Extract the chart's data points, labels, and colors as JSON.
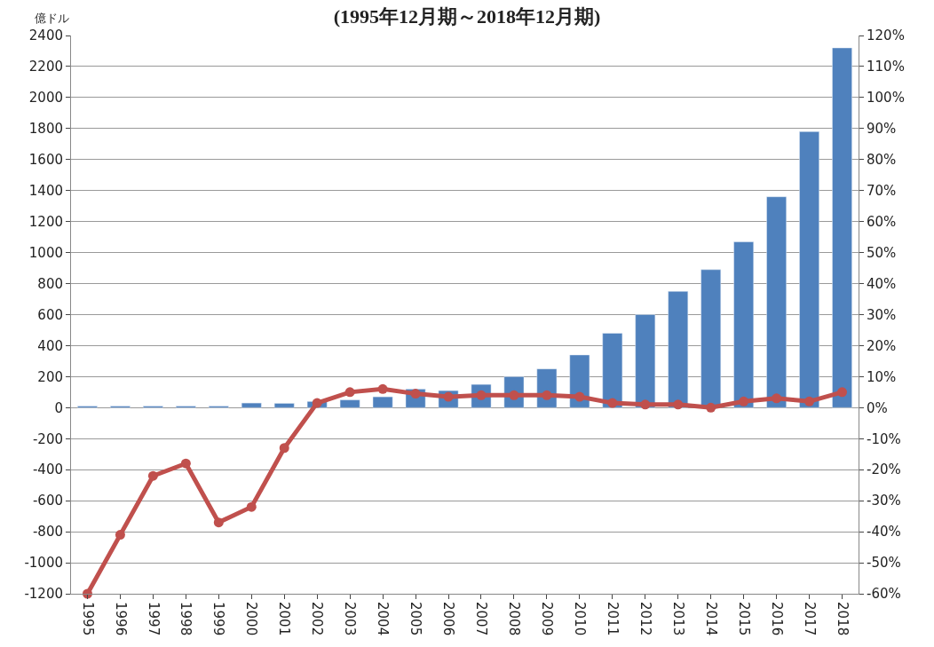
{
  "chart_data": {
    "type": "bar",
    "title": "(1995年12月期～2018年12月期)",
    "ylabel": "億ドル",
    "categories": [
      "1995",
      "1996",
      "1997",
      "1998",
      "1999",
      "2000",
      "2001",
      "2002",
      "2003",
      "2004",
      "2005",
      "2006",
      "2007",
      "2008",
      "2009",
      "2010",
      "2011",
      "2012",
      "2013",
      "2014",
      "2015",
      "2016",
      "2017",
      "2018"
    ],
    "series": [
      {
        "color": "#4f81bd",
        "values": [
          10,
          10,
          10,
          10,
          10,
          30,
          28,
          40,
          50,
          70,
          120,
          110,
          150,
          200,
          250,
          340,
          480,
          600,
          750,
          890,
          1070,
          1360,
          1780,
          2320
        ]
      },
      {
        "type": "line",
        "axis": "y2",
        "color": "#c0504d",
        "marker": "circle",
        "values": [
          -60,
          -41,
          -22,
          -18,
          -37,
          -32,
          -13,
          1.5,
          5,
          6,
          4.5,
          3.5,
          4,
          4,
          4,
          3.5,
          1.5,
          1,
          1,
          0,
          2,
          3,
          2,
          5
        ]
      }
    ],
    "ylim": [
      -1200,
      2400
    ],
    "yticks": [
      -1200,
      -1000,
      -800,
      -600,
      -400,
      -200,
      0,
      200,
      400,
      600,
      800,
      1000,
      1200,
      1400,
      1600,
      1800,
      2000,
      2200,
      2400
    ],
    "y2lim": [
      -60,
      120
    ],
    "y2ticks": [
      {
        "value": -60,
        "label": "-60%"
      },
      {
        "value": -50,
        "label": "-50%"
      },
      {
        "value": -40,
        "label": "-40%"
      },
      {
        "value": -30,
        "label": "-30%"
      },
      {
        "value": -20,
        "label": "-20%"
      },
      {
        "value": -10,
        "label": "-10%"
      },
      {
        "value": 0,
        "label": "0%"
      },
      {
        "value": 10,
        "label": "10%"
      },
      {
        "value": 20,
        "label": "20%"
      },
      {
        "value": 30,
        "label": "30%"
      },
      {
        "value": 40,
        "label": "40%"
      },
      {
        "value": 50,
        "label": "50%"
      },
      {
        "value": 60,
        "label": "60%"
      },
      {
        "value": 70,
        "label": "70%"
      },
      {
        "value": 80,
        "label": "80%"
      },
      {
        "value": 90,
        "label": "90%"
      },
      {
        "value": 100,
        "label": "100%"
      },
      {
        "value": 110,
        "label": "110%"
      },
      {
        "value": 120,
        "label": "120%"
      }
    ],
    "grid": "y"
  }
}
